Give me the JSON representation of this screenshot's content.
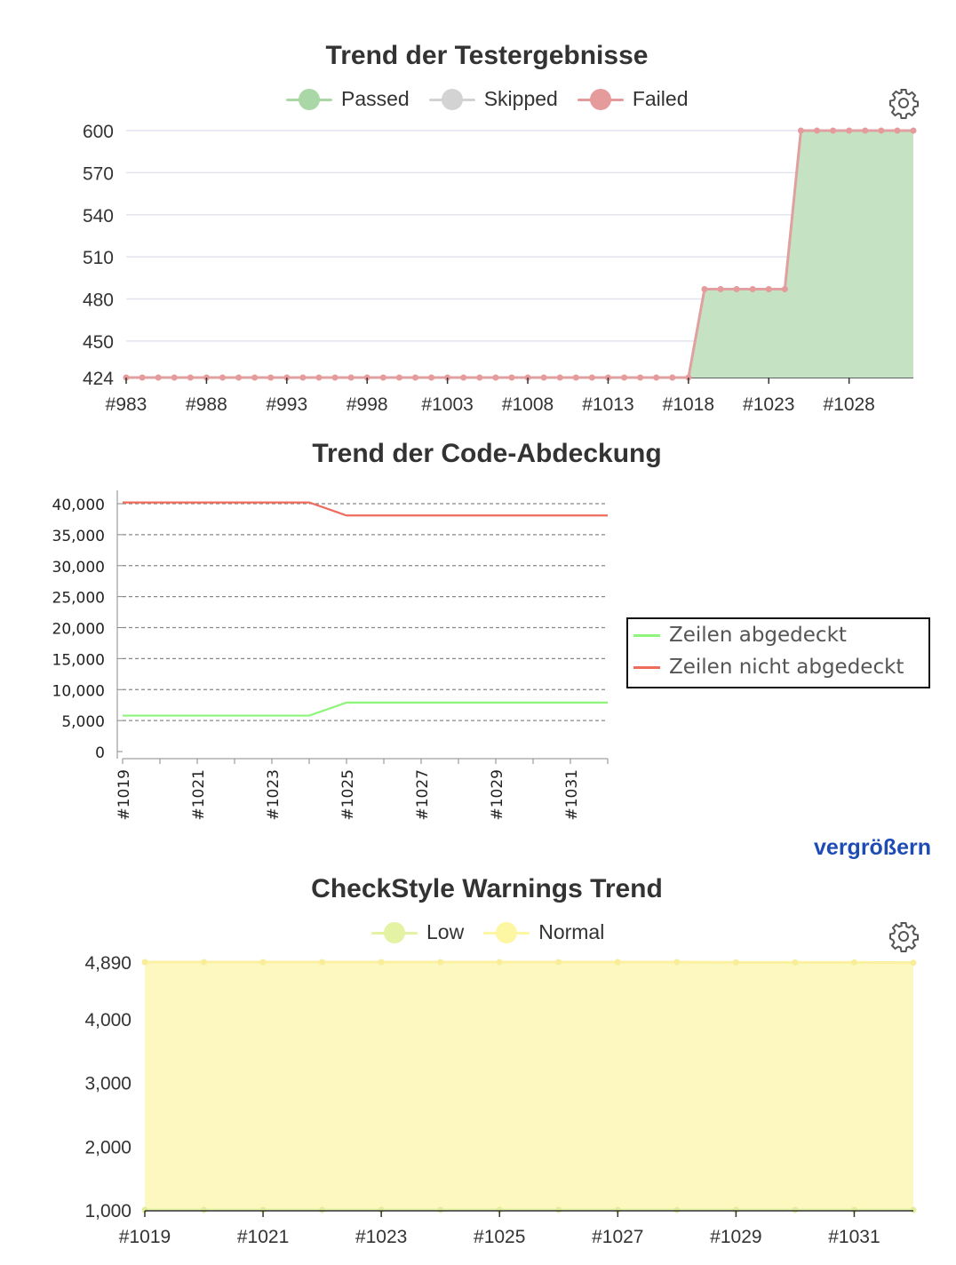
{
  "charts": [
    {
      "title": "Trend der Testergebnisse",
      "legend": [
        {
          "label": "Passed",
          "color": "#a9d8a6"
        },
        {
          "label": "Skipped",
          "color": "#d3d3d3"
        },
        {
          "label": "Failed",
          "color": "#e59b9b"
        }
      ],
      "settings_icon": "gear-icon"
    },
    {
      "title": "Trend der Code-Abdeckung",
      "legend": [
        {
          "label": "Zeilen abgedeckt",
          "color": "#8ef57b"
        },
        {
          "label": "Zeilen nicht abgedeckt",
          "color": "#ef6b5b"
        }
      ],
      "zoom_link": "vergrößern"
    },
    {
      "title": "CheckStyle Warnings Trend",
      "legend": [
        {
          "label": "Low",
          "color": "#e3f2a3"
        },
        {
          "label": "Normal",
          "color": "#fdf6a2"
        }
      ],
      "settings_icon": "gear-icon"
    }
  ],
  "chart_data": [
    {
      "type": "area",
      "title": "Trend der Testergebnisse",
      "x": [
        "#983",
        "#984",
        "#985",
        "#986",
        "#987",
        "#988",
        "#989",
        "#990",
        "#991",
        "#992",
        "#993",
        "#994",
        "#995",
        "#996",
        "#997",
        "#998",
        "#999",
        "#1000",
        "#1001",
        "#1002",
        "#1003",
        "#1004",
        "#1005",
        "#1006",
        "#1007",
        "#1008",
        "#1009",
        "#1010",
        "#1011",
        "#1012",
        "#1013",
        "#1014",
        "#1015",
        "#1016",
        "#1017",
        "#1018",
        "#1019",
        "#1020",
        "#1021",
        "#1022",
        "#1023",
        "#1024",
        "#1025",
        "#1026",
        "#1027",
        "#1028",
        "#1029",
        "#1030",
        "#1031",
        "#1032"
      ],
      "x_tick_labels": [
        "#983",
        "#988",
        "#993",
        "#998",
        "#1003",
        "#1008",
        "#1013",
        "#1018",
        "#1023",
        "#1028"
      ],
      "series": [
        {
          "name": "Passed",
          "values": [
            424,
            424,
            424,
            424,
            424,
            424,
            424,
            424,
            424,
            424,
            424,
            424,
            424,
            424,
            424,
            424,
            424,
            424,
            424,
            424,
            424,
            424,
            424,
            424,
            424,
            424,
            424,
            424,
            424,
            424,
            424,
            424,
            424,
            424,
            424,
            424,
            487,
            487,
            487,
            487,
            487,
            487,
            600,
            600,
            600,
            600,
            600,
            600,
            600,
            600
          ]
        },
        {
          "name": "Skipped",
          "values": [
            0,
            0,
            0,
            0,
            0,
            0,
            0,
            0,
            0,
            0,
            0,
            0,
            0,
            0,
            0,
            0,
            0,
            0,
            0,
            0,
            0,
            0,
            0,
            0,
            0,
            0,
            0,
            0,
            0,
            0,
            0,
            0,
            0,
            0,
            0,
            0,
            0,
            0,
            0,
            0,
            0,
            0,
            0,
            0,
            0,
            0,
            0,
            0,
            0,
            0
          ]
        },
        {
          "name": "Failed",
          "values": [
            0,
            0,
            0,
            0,
            0,
            0,
            0,
            0,
            0,
            0,
            0,
            0,
            0,
            0,
            0,
            0,
            0,
            0,
            0,
            0,
            0,
            0,
            0,
            0,
            0,
            0,
            0,
            0,
            0,
            0,
            0,
            0,
            0,
            0,
            0,
            0,
            0,
            0,
            0,
            0,
            0,
            0,
            0,
            0,
            0,
            0,
            0,
            0,
            0,
            0
          ]
        }
      ],
      "y_ticks": [
        424,
        450,
        480,
        510,
        540,
        570,
        600
      ],
      "ylim": [
        424,
        600
      ],
      "grid": true,
      "legend_position": "top"
    },
    {
      "type": "line",
      "title": "Trend der Code-Abdeckung",
      "x": [
        "#1019",
        "#1020",
        "#1021",
        "#1022",
        "#1023",
        "#1024",
        "#1025",
        "#1026",
        "#1027",
        "#1028",
        "#1029",
        "#1030",
        "#1031",
        "#1032"
      ],
      "x_tick_labels": [
        "#1019",
        "#1021",
        "#1023",
        "#1025",
        "#1027",
        "#1029",
        "#1031"
      ],
      "series": [
        {
          "name": "Zeilen abgedeckt",
          "values": [
            5800,
            5800,
            5800,
            5800,
            5800,
            5800,
            7900,
            7900,
            7900,
            7900,
            7900,
            7900,
            7900,
            7900
          ]
        },
        {
          "name": "Zeilen nicht abgedeckt",
          "values": [
            40200,
            40200,
            40200,
            40200,
            40200,
            40200,
            38100,
            38100,
            38100,
            38100,
            38100,
            38100,
            38100,
            38100
          ]
        }
      ],
      "y_ticks": [
        "0",
        "5,000",
        "10,000",
        "15,000",
        "20,000",
        "25,000",
        "30,000",
        "35,000",
        "40,000"
      ],
      "ylim": [
        0,
        40000
      ],
      "grid": true,
      "legend_position": "right"
    },
    {
      "type": "area",
      "title": "CheckStyle Warnings Trend",
      "x": [
        "#1019",
        "#1020",
        "#1021",
        "#1022",
        "#1023",
        "#1024",
        "#1025",
        "#1026",
        "#1027",
        "#1028",
        "#1029",
        "#1030",
        "#1031",
        "#1032"
      ],
      "x_tick_labels": [
        "#1019",
        "#1021",
        "#1023",
        "#1025",
        "#1027",
        "#1029",
        "#1031"
      ],
      "series": [
        {
          "name": "Low",
          "values": [
            1000,
            1000,
            1000,
            1000,
            1000,
            1000,
            1000,
            1000,
            1000,
            1000,
            1000,
            1000,
            1000,
            1000
          ]
        },
        {
          "name": "Normal",
          "values": [
            4890,
            4890,
            4890,
            4890,
            4890,
            4890,
            4890,
            4890,
            4890,
            4890,
            4885,
            4885,
            4885,
            4880
          ]
        }
      ],
      "y_ticks": [
        "1,000",
        "2,000",
        "3,000",
        "4,000",
        "4,890"
      ],
      "ylim": [
        1000,
        4890
      ],
      "grid": true,
      "legend_position": "top"
    }
  ]
}
